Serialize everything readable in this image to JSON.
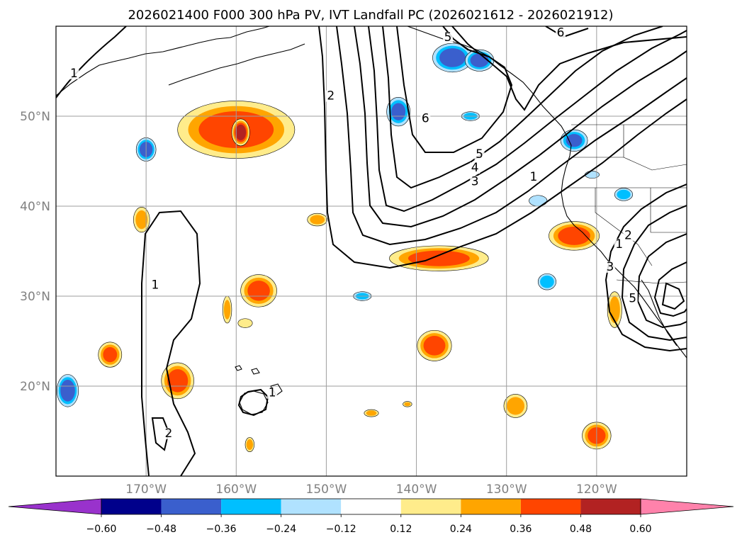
{
  "chart_data": {
    "type": "map-contour",
    "title": "2026021400 F000 300 hPa PV, IVT Landfall PC (2026021612 - 2026021912)",
    "x_range_deg_lon": [
      -180,
      -110
    ],
    "y_range_deg_lat": [
      10,
      60
    ],
    "lon_ticks": [
      {
        "value": -170,
        "label": "170°W"
      },
      {
        "value": -160,
        "label": "160°W"
      },
      {
        "value": -150,
        "label": "150°W"
      },
      {
        "value": -140,
        "label": "140°W"
      },
      {
        "value": -130,
        "label": "130°W"
      },
      {
        "value": -120,
        "label": "120°W"
      }
    ],
    "lat_ticks": [
      {
        "value": 50,
        "label": "50°N"
      },
      {
        "value": 40,
        "label": "40°N"
      },
      {
        "value": 30,
        "label": "30°N"
      },
      {
        "value": 20,
        "label": "20°N"
      }
    ],
    "grid": true,
    "colorbar": {
      "orientation": "horizontal",
      "extend": "both",
      "under_color": "#9932cc",
      "over_color": "#ff82ab",
      "bins": [
        {
          "lo": -0.6,
          "hi": -0.48,
          "color": "#00008b"
        },
        {
          "lo": -0.48,
          "hi": -0.36,
          "color": "#3a5fcd"
        },
        {
          "lo": -0.36,
          "hi": -0.24,
          "color": "#00bfff"
        },
        {
          "lo": -0.24,
          "hi": -0.12,
          "color": "#b0e2ff"
        },
        {
          "lo": -0.12,
          "hi": 0.12,
          "color": "#ffffff"
        },
        {
          "lo": 0.12,
          "hi": 0.24,
          "color": "#ffec8b"
        },
        {
          "lo": 0.24,
          "hi": 0.36,
          "color": "#ffa500"
        },
        {
          "lo": 0.36,
          "hi": 0.48,
          "color": "#ff4500"
        },
        {
          "lo": 0.48,
          "hi": 0.6,
          "color": "#b22222"
        }
      ],
      "tick_labels": [
        "−0.60",
        "−0.48",
        "−0.36",
        "−0.24",
        "−0.12",
        "0.12",
        "0.24",
        "0.36",
        "0.48",
        "0.60"
      ]
    },
    "pv_contour_labels": [
      {
        "text": "1",
        "lon": -178,
        "lat": 54.5
      },
      {
        "text": "2",
        "lon": -149.5,
        "lat": 52
      },
      {
        "text": "6",
        "lon": -139,
        "lat": 49.5
      },
      {
        "text": "5",
        "lon": -133,
        "lat": 45.5
      },
      {
        "text": "4",
        "lon": -133.5,
        "lat": 44
      },
      {
        "text": "3",
        "lon": -133.5,
        "lat": 42.5
      },
      {
        "text": "1",
        "lon": -127,
        "lat": 43
      },
      {
        "text": "6",
        "lon": -124,
        "lat": 59
      },
      {
        "text": "1",
        "lon": -169,
        "lat": 31
      },
      {
        "text": "1",
        "lon": -156,
        "lat": 19
      },
      {
        "text": "2",
        "lon": -167.5,
        "lat": 14.5
      },
      {
        "text": "1",
        "lon": -117.5,
        "lat": 35.5
      },
      {
        "text": "2",
        "lon": -116.5,
        "lat": 36.5
      },
      {
        "text": "3",
        "lon": -118.5,
        "lat": 33
      },
      {
        "text": "5",
        "lon": -116,
        "lat": 29.5
      },
      {
        "text": "5",
        "lon": -136.5,
        "lat": 58.5
      }
    ],
    "shaded_pc_regions": [
      {
        "lon": -160,
        "lat": 48.5,
        "rx": 6.5,
        "ry": 3.2,
        "value": 0.4
      },
      {
        "lon": -159.5,
        "lat": 48.2,
        "rx": 1.0,
        "ry": 1.5,
        "value": 0.52
      },
      {
        "lon": -137.5,
        "lat": 34.2,
        "rx": 5.5,
        "ry": 1.4,
        "value": 0.38
      },
      {
        "lon": -122.5,
        "lat": 36.7,
        "rx": 2.8,
        "ry": 1.6,
        "value": 0.4
      },
      {
        "lon": -157.5,
        "lat": 30.6,
        "rx": 2.0,
        "ry": 1.8,
        "value": 0.38
      },
      {
        "lon": -138,
        "lat": 24.5,
        "rx": 1.9,
        "ry": 1.7,
        "value": 0.4
      },
      {
        "lon": -166.5,
        "lat": 20.6,
        "rx": 1.8,
        "ry": 2.0,
        "value": 0.4
      },
      {
        "lon": -174,
        "lat": 23.5,
        "rx": 1.3,
        "ry": 1.4,
        "value": 0.36
      },
      {
        "lon": -120,
        "lat": 14.5,
        "rx": 1.6,
        "ry": 1.5,
        "value": 0.38
      },
      {
        "lon": -129,
        "lat": 17.8,
        "rx": 1.3,
        "ry": 1.3,
        "value": 0.3
      },
      {
        "lon": -170.5,
        "lat": 38.5,
        "rx": 0.9,
        "ry": 1.4,
        "value": 0.28
      },
      {
        "lon": -151,
        "lat": 38.5,
        "rx": 1.1,
        "ry": 0.7,
        "value": 0.28
      },
      {
        "lon": -118,
        "lat": 28.5,
        "rx": 0.8,
        "ry": 2.0,
        "value": 0.28
      },
      {
        "lon": -161,
        "lat": 28.5,
        "rx": 0.5,
        "ry": 1.5,
        "value": 0.26
      },
      {
        "lon": -159,
        "lat": 27,
        "rx": 0.8,
        "ry": 0.5,
        "value": 0.22
      },
      {
        "lon": -158.5,
        "lat": 13.5,
        "rx": 0.5,
        "ry": 0.8,
        "value": 0.28
      },
      {
        "lon": -145,
        "lat": 17,
        "rx": 0.8,
        "ry": 0.4,
        "value": 0.26
      },
      {
        "lon": -141,
        "lat": 18,
        "rx": 0.5,
        "ry": 0.3,
        "value": 0.24
      },
      {
        "lon": -136,
        "lat": 56.5,
        "rx": 2.2,
        "ry": 1.6,
        "value": -0.42
      },
      {
        "lon": -133,
        "lat": 56.2,
        "rx": 1.6,
        "ry": 1.2,
        "value": -0.4
      },
      {
        "lon": -142,
        "lat": 50.5,
        "rx": 1.3,
        "ry": 1.6,
        "value": -0.36
      },
      {
        "lon": -122.5,
        "lat": 47.3,
        "rx": 1.5,
        "ry": 1.2,
        "value": -0.36
      },
      {
        "lon": -170,
        "lat": 46.3,
        "rx": 1.1,
        "ry": 1.3,
        "value": -0.42
      },
      {
        "lon": -125.5,
        "lat": 31.6,
        "rx": 1.0,
        "ry": 0.9,
        "value": -0.32
      },
      {
        "lon": -178.7,
        "lat": 19.5,
        "rx": 1.2,
        "ry": 1.8,
        "value": -0.44
      },
      {
        "lon": -134,
        "lat": 50,
        "rx": 1.0,
        "ry": 0.5,
        "value": -0.3
      },
      {
        "lon": -126.5,
        "lat": 40.6,
        "rx": 1.0,
        "ry": 0.6,
        "value": -0.2
      },
      {
        "lon": -117,
        "lat": 41.3,
        "rx": 1.0,
        "ry": 0.7,
        "value": -0.3
      },
      {
        "lon": -146,
        "lat": 30,
        "rx": 1.0,
        "ry": 0.5,
        "value": -0.26
      },
      {
        "lon": -120.5,
        "lat": 43.5,
        "rx": 0.8,
        "ry": 0.4,
        "value": -0.2
      }
    ]
  }
}
